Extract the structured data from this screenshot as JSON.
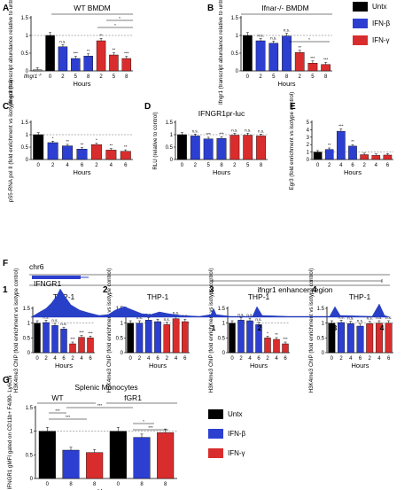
{
  "colors": {
    "untx": "#000000",
    "ifnb": "#2d3fd0",
    "ifng": "#d92d2d",
    "ko": "#9a9a9a"
  },
  "legend": {
    "items": [
      {
        "label": "Untx",
        "color": "#000000"
      },
      {
        "label": "IFN-β",
        "color": "#2d3fd0"
      },
      {
        "label": "IFN-γ",
        "color": "#d92d2d"
      }
    ]
  },
  "chart_data": [
    {
      "id": "A",
      "type": "bar",
      "title": "WT BMDM",
      "ylabel": "Ifngr1 (transcript abundance relative to untreated)",
      "xlabel": "Hours",
      "ylim": [
        0,
        1.5
      ],
      "yticks": [
        0,
        0.5,
        1,
        1.5
      ],
      "categories": [
        "Ifngr1-/-",
        "0",
        "2",
        "5",
        "8",
        "2",
        "5",
        "8"
      ],
      "values": [
        0.03,
        1.0,
        0.68,
        0.35,
        0.42,
        0.85,
        0.45,
        0.35
      ],
      "colors": [
        "ko",
        "untx",
        "ifnb",
        "ifnb",
        "ifnb",
        "ifng",
        "ifng",
        "ifng"
      ],
      "annotations": [
        "",
        "",
        "n.s.",
        "***",
        "**",
        "**",
        "**",
        "***"
      ],
      "brackets": [
        "*",
        "*"
      ]
    },
    {
      "id": "B",
      "type": "bar",
      "title": "Ifnar-/- BMDM",
      "ylabel": "Ifngr1 (transcript abundance relative to untreated)",
      "xlabel": "Hours",
      "ylim": [
        0,
        1.5
      ],
      "yticks": [
        0,
        0.5,
        1,
        1.5
      ],
      "categories": [
        "0",
        "2",
        "5",
        "8",
        "2",
        "5",
        "8"
      ],
      "values": [
        1.0,
        0.85,
        0.78,
        0.98,
        0.52,
        0.22,
        0.18
      ],
      "colors": [
        "untx",
        "ifnb",
        "ifnb",
        "ifnb",
        "ifng",
        "ifng",
        "ifng"
      ],
      "annotations": [
        "",
        "n.s.",
        "n.s.",
        "n.s.",
        "**",
        "***",
        "***"
      ],
      "brackets": [
        "*"
      ]
    },
    {
      "id": "C",
      "type": "bar",
      "ylabel": "pS5-RNA pol II (fold enrichment vs isotype control)",
      "xlabel": "Hours",
      "ylim": [
        0,
        1.5
      ],
      "yticks": [
        0,
        0.5,
        1,
        1.5
      ],
      "categories": [
        "0",
        "2",
        "4",
        "6",
        "2",
        "4",
        "6"
      ],
      "values": [
        1.0,
        0.68,
        0.55,
        0.42,
        0.6,
        0.38,
        0.33
      ],
      "colors": [
        "untx",
        "ifnb",
        "ifnb",
        "ifnb",
        "ifng",
        "ifng",
        "ifng"
      ],
      "annotations": [
        "",
        "*",
        "**",
        "**",
        "*",
        "**",
        "**"
      ]
    },
    {
      "id": "D",
      "type": "bar",
      "title": "IFNGR1pr-luc",
      "ylabel": "RLU (relative to control)",
      "xlabel": "Hours",
      "ylim": [
        0,
        1.5
      ],
      "yticks": [
        0,
        0.5,
        1,
        1.5
      ],
      "categories": [
        "0",
        "2",
        "5",
        "8",
        "2",
        "5",
        "8"
      ],
      "values": [
        1.0,
        0.95,
        0.83,
        0.85,
        0.98,
        0.98,
        0.95
      ],
      "colors": [
        "untx",
        "ifnb",
        "ifnb",
        "ifnb",
        "ifng",
        "ifng",
        "ifng"
      ],
      "annotations": [
        "",
        "n.s.",
        "***",
        "***",
        "n.s.",
        "n.s.",
        "n.s."
      ]
    },
    {
      "id": "E",
      "type": "bar",
      "ylabel": "Egr3 (fold enrichment vs isotype control)",
      "xlabel": "Hours",
      "ylim": [
        0,
        5
      ],
      "yticks": [
        0,
        1,
        2,
        3,
        4,
        5
      ],
      "categories": [
        "0",
        "2",
        "4",
        "6",
        "2",
        "4",
        "6"
      ],
      "values": [
        1.0,
        1.35,
        3.8,
        1.8,
        0.65,
        0.55,
        0.6
      ],
      "colors": [
        "untx",
        "ifnb",
        "ifnb",
        "ifnb",
        "ifng",
        "ifng",
        "ifng"
      ],
      "annotations": [
        "",
        "**",
        "***",
        "**",
        "",
        "",
        ""
      ]
    },
    {
      "id": "F1",
      "type": "bar",
      "title": "THP-1",
      "ylabel": "H3K4me3 ChIP (fold enrichment vs isotype control)",
      "xlabel": "Hours",
      "ylim": [
        0,
        1.5
      ],
      "yticks": [
        0,
        0.5,
        1,
        1.5
      ],
      "categories": [
        "0",
        "2",
        "4",
        "6",
        "2",
        "4",
        "6"
      ],
      "values": [
        1.0,
        1.02,
        0.92,
        0.8,
        0.3,
        0.52,
        0.5
      ],
      "colors": [
        "untx",
        "ifnb",
        "ifnb",
        "ifnb",
        "ifng",
        "ifng",
        "ifng"
      ],
      "annotations": [
        "",
        "n.s.",
        "n.s.",
        "n.s.",
        "***",
        "***",
        "***"
      ]
    },
    {
      "id": "F2",
      "type": "bar",
      "title": "THP-1",
      "ylabel": "H3K4me3 ChIP (fold enrichment vs isotype control)",
      "xlabel": "Hours",
      "ylim": [
        0,
        1.5
      ],
      "yticks": [
        0,
        0.5,
        1,
        1.5
      ],
      "categories": [
        "0",
        "2",
        "4",
        "6",
        "2",
        "4",
        "6"
      ],
      "values": [
        1.0,
        1.0,
        1.1,
        1.05,
        0.95,
        1.15,
        1.05
      ],
      "colors": [
        "untx",
        "ifnb",
        "ifnb",
        "ifnb",
        "ifng",
        "ifng",
        "ifng"
      ],
      "annotations": [
        "",
        "n.s.",
        "n.s.",
        "n.s.",
        "n.s.",
        "n.s.",
        "n.s."
      ]
    },
    {
      "id": "F3",
      "type": "bar",
      "title": "THP-1",
      "ylabel": "H3K4me3 ChIP (fold enrichment vs isotype control)",
      "xlabel": "Hours",
      "ylim": [
        0,
        1.5
      ],
      "yticks": [
        0,
        0.5,
        1,
        1.5
      ],
      "categories": [
        "0",
        "2",
        "4",
        "6",
        "2",
        "4",
        "6"
      ],
      "values": [
        1.0,
        1.1,
        1.08,
        0.95,
        0.5,
        0.45,
        0.3
      ],
      "colors": [
        "untx",
        "ifnb",
        "ifnb",
        "ifnb",
        "ifng",
        "ifng",
        "ifng"
      ],
      "annotations": [
        "",
        "n.s.",
        "n.s.",
        "n.s.",
        "*",
        "**",
        "***"
      ]
    },
    {
      "id": "F4",
      "type": "bar",
      "title": "THP-1",
      "ylabel": "H3K4me3 ChIP (fold enrichment vs isotype control)",
      "xlabel": "Hours",
      "ylim": [
        0,
        1.5
      ],
      "yticks": [
        0,
        0.5,
        1,
        1.5
      ],
      "categories": [
        "0",
        "2",
        "4",
        "6",
        "2",
        "4",
        "6"
      ],
      "values": [
        1.0,
        1.02,
        0.98,
        0.9,
        0.98,
        1.0,
        1.0
      ],
      "colors": [
        "untx",
        "ifnb",
        "ifnb",
        "ifnb",
        "ifng",
        "ifng",
        "ifng"
      ],
      "annotations": [
        "",
        "n.s.",
        "n.s.",
        "n.s.",
        "n.s.",
        "n.s.",
        "n.s."
      ]
    },
    {
      "id": "G",
      "type": "bar",
      "title": "Splenic Monocytes",
      "ylabel": "Relative IFNGR1 gMFI gated on CD11b+ F4/80- Ly6Chi",
      "xlabel": "Hours",
      "ylim": [
        0,
        1.5
      ],
      "yticks": [
        0,
        0.5,
        1,
        1.5
      ],
      "groups": [
        "WT",
        "fGR1"
      ],
      "categories": [
        "0",
        "8",
        "8",
        "0",
        "8",
        "8"
      ],
      "values": [
        1.0,
        0.6,
        0.55,
        1.0,
        0.87,
        0.97
      ],
      "colors": [
        "untx",
        "ifnb",
        "ifng",
        "untx",
        "ifnb",
        "ifng"
      ],
      "brackets": [
        "***",
        "***",
        "***",
        "*",
        "***"
      ]
    }
  ],
  "track": {
    "chromosome": "chr6",
    "gene": "IFNGR1",
    "region_label": "ifngr1 enhancer region",
    "peaks": [
      "1",
      "2",
      "3",
      "4"
    ]
  }
}
